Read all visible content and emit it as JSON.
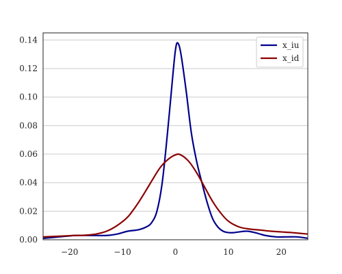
{
  "chart_data": {
    "type": "line",
    "xlim": [
      -25,
      25
    ],
    "ylim": [
      0,
      0.145
    ],
    "x_ticks": [
      -20,
      -10,
      0,
      10,
      20
    ],
    "x_tick_labels": [
      "−20",
      "−10",
      "0",
      "10",
      "20"
    ],
    "y_ticks": [
      0.0,
      0.02,
      0.04,
      0.06,
      0.08,
      0.1,
      0.12,
      0.14
    ],
    "y_tick_labels": [
      "0.00",
      "0.02",
      "0.04",
      "0.06",
      "0.08",
      "0.10",
      "0.12",
      "0.14"
    ],
    "grid": "horizontal",
    "legend_position": "top-right",
    "series": [
      {
        "name": "x_iu",
        "color": "#00008b",
        "points": [
          [
            -25,
            0.001
          ],
          [
            -22,
            0.002
          ],
          [
            -19,
            0.003
          ],
          [
            -16,
            0.003
          ],
          [
            -13,
            0.003
          ],
          [
            -11,
            0.004
          ],
          [
            -9,
            0.006
          ],
          [
            -7,
            0.007
          ],
          [
            -5.5,
            0.009
          ],
          [
            -4.5,
            0.012
          ],
          [
            -3.5,
            0.02
          ],
          [
            -2.5,
            0.04
          ],
          [
            -1.5,
            0.075
          ],
          [
            -0.5,
            0.115
          ],
          [
            0,
            0.133
          ],
          [
            0.4,
            0.138
          ],
          [
            1,
            0.131
          ],
          [
            2,
            0.105
          ],
          [
            3,
            0.075
          ],
          [
            4,
            0.055
          ],
          [
            5,
            0.04
          ],
          [
            6,
            0.026
          ],
          [
            7,
            0.015
          ],
          [
            8,
            0.009
          ],
          [
            9,
            0.006
          ],
          [
            10,
            0.005
          ],
          [
            11,
            0.005
          ],
          [
            12,
            0.0055
          ],
          [
            13.5,
            0.006
          ],
          [
            15,
            0.005
          ],
          [
            17,
            0.003
          ],
          [
            19,
            0.002
          ],
          [
            21,
            0.002
          ],
          [
            23,
            0.002
          ],
          [
            25,
            0.001
          ]
        ]
      },
      {
        "name": "x_id",
        "color": "#8b0000",
        "points": [
          [
            -25,
            0.002
          ],
          [
            -22,
            0.0025
          ],
          [
            -19,
            0.003
          ],
          [
            -17,
            0.0032
          ],
          [
            -15,
            0.004
          ],
          [
            -13,
            0.006
          ],
          [
            -11,
            0.01
          ],
          [
            -9,
            0.016
          ],
          [
            -7,
            0.026
          ],
          [
            -5,
            0.038
          ],
          [
            -3,
            0.05
          ],
          [
            -1.5,
            0.056
          ],
          [
            0,
            0.0595
          ],
          [
            1,
            0.0595
          ],
          [
            2.5,
            0.055
          ],
          [
            4,
            0.047
          ],
          [
            5.5,
            0.037
          ],
          [
            7,
            0.027
          ],
          [
            8.5,
            0.019
          ],
          [
            10,
            0.013
          ],
          [
            12,
            0.009
          ],
          [
            14,
            0.0075
          ],
          [
            16,
            0.0068
          ],
          [
            18,
            0.006
          ],
          [
            20,
            0.0055
          ],
          [
            22,
            0.005
          ],
          [
            25,
            0.004
          ]
        ]
      }
    ]
  }
}
